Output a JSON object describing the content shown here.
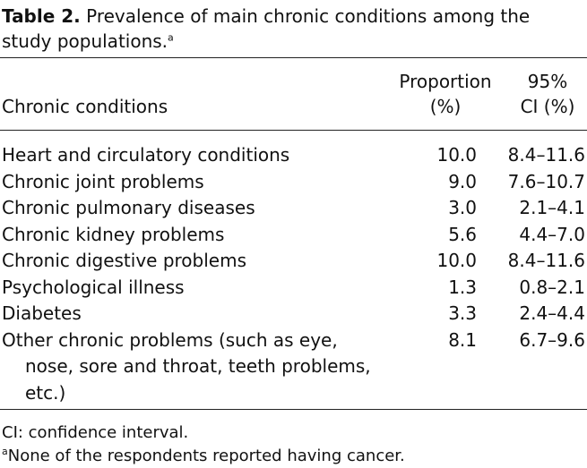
{
  "caption": {
    "label": "Table 2.",
    "text": " Prevalence of main chronic conditions among the study populations.",
    "superscript": "a"
  },
  "table": {
    "headers": {
      "condition": "Chronic conditions",
      "proportion_line1": "Proportion",
      "proportion_line2": "(%)",
      "ci_line1": "95%",
      "ci_line2": "CI (%)"
    },
    "rows": [
      {
        "condition": "Heart and circulatory conditions",
        "proportion": "10.0",
        "ci": "8.4–11.6"
      },
      {
        "condition": "Chronic joint problems",
        "proportion": "9.0",
        "ci": "7.6–10.7"
      },
      {
        "condition": "Chronic pulmonary diseases",
        "proportion": "3.0",
        "ci": "2.1–4.1"
      },
      {
        "condition": "Chronic kidney problems",
        "proportion": "5.6",
        "ci": "4.4–7.0"
      },
      {
        "condition": "Chronic digestive problems",
        "proportion": "10.0",
        "ci": "8.4–11.6"
      },
      {
        "condition": "Psychological illness",
        "proportion": "1.3",
        "ci": "0.8–2.1"
      },
      {
        "condition": "Diabetes",
        "proportion": "3.3",
        "ci": "2.4–4.4"
      },
      {
        "condition": "Other chronic problems (such as eye, nose, sore and throat, teeth problems, etc.)",
        "proportion": "8.1",
        "ci": "6.7–9.6"
      }
    ]
  },
  "footnotes": {
    "abbrev": "CI: confidence interval.",
    "note_marker": "a",
    "note_text": "None of the respondents reported having cancer."
  }
}
